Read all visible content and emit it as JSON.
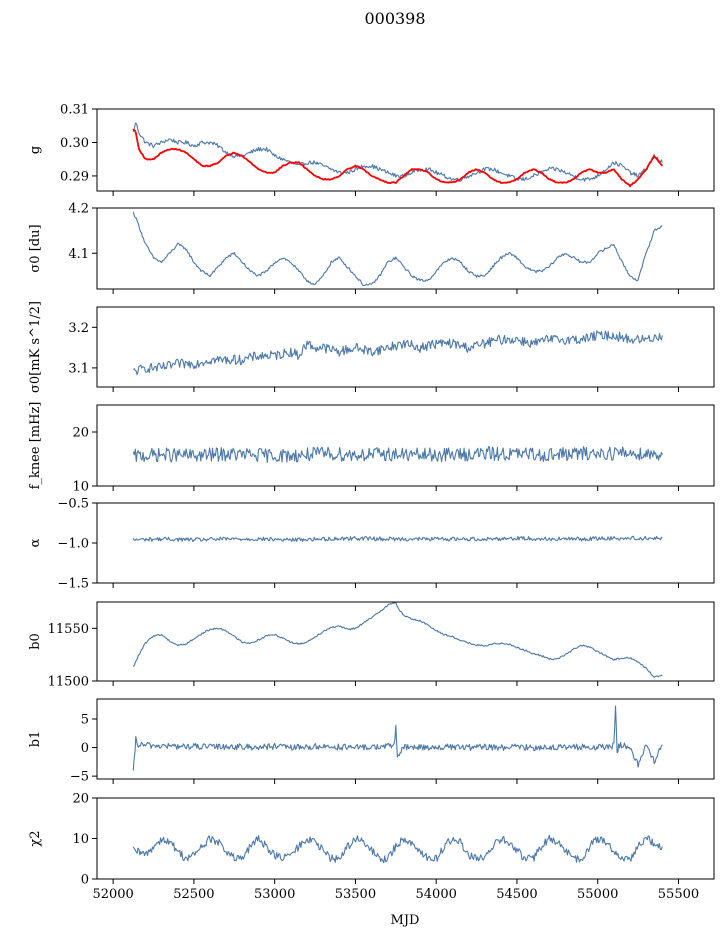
{
  "figure": {
    "title": "000398",
    "xlabel": "MJD"
  },
  "colors": {
    "series": "#4c78a8",
    "model": "#ff0000",
    "axis": "#000000"
  },
  "chart_data": [
    {
      "type": "line",
      "name": "g",
      "ylabel": "g",
      "xlim": [
        51900,
        55720
      ],
      "ylim": [
        0.2855,
        0.31
      ],
      "yticks": [
        0.29,
        0.3,
        0.31
      ],
      "yticklabels": [
        "0.29",
        "0.30",
        "0.31"
      ],
      "xticks": [
        52000,
        52500,
        53000,
        53500,
        54000,
        54500,
        55000,
        55500
      ],
      "x": [
        52125,
        52140,
        52160,
        52200,
        52250,
        52300,
        52350,
        52400,
        52450,
        52500,
        52550,
        52600,
        52650,
        52700,
        52750,
        52800,
        52850,
        52900,
        52950,
        53000,
        53050,
        53100,
        53150,
        53200,
        53250,
        53300,
        53350,
        53400,
        53450,
        53500,
        53550,
        53600,
        53650,
        53700,
        53750,
        53800,
        53850,
        53900,
        53950,
        54000,
        54050,
        54100,
        54150,
        54200,
        54250,
        54300,
        54350,
        54400,
        54450,
        54500,
        54550,
        54600,
        54650,
        54700,
        54750,
        54800,
        54850,
        54900,
        54950,
        55000,
        55050,
        55100,
        55150,
        55200,
        55250,
        55300,
        55350,
        55400
      ],
      "series": [
        {
          "name": "",
          "values": [
            0.303,
            0.306,
            0.303,
            0.3,
            0.299,
            0.3,
            0.301,
            0.3,
            0.3,
            0.299,
            0.3,
            0.3,
            0.299,
            0.297,
            0.296,
            0.296,
            0.297,
            0.298,
            0.298,
            0.296,
            0.295,
            0.294,
            0.293,
            0.294,
            0.294,
            0.293,
            0.292,
            0.291,
            0.291,
            0.292,
            0.293,
            0.293,
            0.292,
            0.291,
            0.29,
            0.29,
            0.291,
            0.292,
            0.292,
            0.291,
            0.29,
            0.289,
            0.289,
            0.29,
            0.291,
            0.292,
            0.292,
            0.291,
            0.29,
            0.289,
            0.289,
            0.29,
            0.291,
            0.292,
            0.292,
            0.291,
            0.29,
            0.289,
            0.289,
            0.29,
            0.292,
            0.294,
            0.293,
            0.291,
            0.29,
            0.292,
            0.296,
            0.294
          ]
        },
        {
          "name": "",
          "values": [
            0.304,
            0.303,
            0.298,
            0.295,
            0.295,
            0.297,
            0.298,
            0.298,
            0.297,
            0.295,
            0.293,
            0.293,
            0.294,
            0.296,
            0.297,
            0.296,
            0.294,
            0.292,
            0.291,
            0.291,
            0.293,
            0.294,
            0.294,
            0.292,
            0.29,
            0.289,
            0.289,
            0.29,
            0.292,
            0.293,
            0.292,
            0.29,
            0.289,
            0.288,
            0.288,
            0.29,
            0.292,
            0.292,
            0.291,
            0.289,
            0.288,
            0.288,
            0.289,
            0.291,
            0.292,
            0.291,
            0.289,
            0.288,
            0.288,
            0.289,
            0.291,
            0.292,
            0.291,
            0.289,
            0.288,
            0.288,
            0.289,
            0.291,
            0.292,
            0.291,
            0.291,
            0.292,
            0.289,
            0.287,
            0.289,
            0.292,
            0.296,
            0.293
          ]
        }
      ]
    },
    {
      "type": "line",
      "name": "sigma0-du",
      "ylabel": "σ0 [du]",
      "xlim": [
        51900,
        55720
      ],
      "ylim": [
        4.021,
        4.2
      ],
      "yticks": [
        4.1,
        4.2
      ],
      "yticklabels": [
        "4.1",
        "4.2"
      ],
      "x": [
        52125,
        52150,
        52200,
        52250,
        52300,
        52350,
        52400,
        52450,
        52500,
        52550,
        52600,
        52650,
        52700,
        52750,
        52800,
        52850,
        52900,
        52950,
        53000,
        53050,
        53100,
        53150,
        53200,
        53250,
        53300,
        53350,
        53400,
        53450,
        53500,
        53550,
        53600,
        53650,
        53700,
        53750,
        53800,
        53850,
        53900,
        53950,
        54000,
        54050,
        54100,
        54150,
        54200,
        54250,
        54300,
        54350,
        54400,
        54450,
        54500,
        54550,
        54600,
        54650,
        54700,
        54750,
        54800,
        54850,
        54900,
        54950,
        55000,
        55050,
        55100,
        55150,
        55200,
        55250,
        55300,
        55350,
        55400
      ],
      "series": [
        {
          "name": "",
          "values": [
            4.19,
            4.17,
            4.12,
            4.09,
            4.08,
            4.1,
            4.12,
            4.11,
            4.08,
            4.06,
            4.05,
            4.07,
            4.09,
            4.1,
            4.08,
            4.06,
            4.05,
            4.06,
            4.08,
            4.09,
            4.08,
            4.06,
            4.04,
            4.03,
            4.05,
            4.08,
            4.09,
            4.07,
            4.05,
            4.03,
            4.03,
            4.05,
            4.08,
            4.09,
            4.07,
            4.05,
            4.04,
            4.04,
            4.06,
            4.08,
            4.09,
            4.08,
            4.06,
            4.05,
            4.05,
            4.07,
            4.09,
            4.1,
            4.09,
            4.07,
            4.06,
            4.06,
            4.07,
            4.09,
            4.1,
            4.09,
            4.08,
            4.08,
            4.1,
            4.11,
            4.12,
            4.08,
            4.05,
            4.04,
            4.1,
            4.15,
            4.16
          ]
        }
      ]
    },
    {
      "type": "line",
      "name": "sigma0-mK",
      "ylabel": "σ0[mK s^1/2]",
      "xlim": [
        51900,
        55720
      ],
      "ylim": [
        3.053,
        3.25
      ],
      "yticks": [
        3.1,
        3.2
      ],
      "yticklabels": [
        "3.1",
        "3.2"
      ],
      "x": [
        52125,
        52200,
        52300,
        52400,
        52500,
        52600,
        52700,
        52800,
        52900,
        53000,
        53100,
        53150,
        53200,
        53250,
        53300,
        53400,
        53500,
        53600,
        53700,
        53800,
        53900,
        54000,
        54100,
        54200,
        54300,
        54400,
        54500,
        54600,
        54700,
        54800,
        54900,
        55000,
        55100,
        55200,
        55300,
        55400
      ],
      "series": [
        {
          "name": "",
          "values": [
            3.09,
            3.1,
            3.1,
            3.11,
            3.11,
            3.12,
            3.12,
            3.12,
            3.13,
            3.13,
            3.14,
            3.13,
            3.16,
            3.15,
            3.15,
            3.14,
            3.15,
            3.14,
            3.15,
            3.16,
            3.15,
            3.16,
            3.16,
            3.15,
            3.16,
            3.17,
            3.17,
            3.16,
            3.17,
            3.17,
            3.17,
            3.18,
            3.18,
            3.17,
            3.17,
            3.18
          ]
        }
      ]
    },
    {
      "type": "line",
      "name": "f-knee",
      "ylabel": "f_knee [mHz]",
      "xlim": [
        51900,
        55720
      ],
      "ylim": [
        10,
        25
      ],
      "yticks": [
        10,
        20
      ],
      "yticklabels": [
        "10",
        "20"
      ],
      "x": [
        52125,
        52300,
        52500,
        52700,
        52900,
        53100,
        53300,
        53500,
        53700,
        53900,
        54100,
        54300,
        54500,
        54700,
        54900,
        55100,
        55300,
        55400
      ],
      "series": [
        {
          "name": "",
          "values": [
            15.5,
            15.8,
            15.6,
            15.9,
            15.7,
            15.6,
            16.0,
            15.8,
            15.9,
            15.7,
            15.8,
            16.0,
            15.9,
            15.8,
            16.0,
            16.1,
            16.0,
            15.8
          ]
        }
      ]
    },
    {
      "type": "line",
      "name": "alpha",
      "ylabel": "α",
      "xlim": [
        51900,
        55720
      ],
      "ylim": [
        -1.5,
        -0.5
      ],
      "yticks": [
        -1.5,
        -1.0,
        -0.5
      ],
      "yticklabels": [
        "−1.5",
        "−1.0",
        "−0.5"
      ],
      "x": [
        52125,
        52300,
        52500,
        52700,
        52900,
        53100,
        53300,
        53500,
        53700,
        53900,
        54100,
        54300,
        54500,
        54700,
        54900,
        55100,
        55300,
        55400
      ],
      "series": [
        {
          "name": "",
          "values": [
            -0.96,
            -0.95,
            -0.96,
            -0.95,
            -0.95,
            -0.96,
            -0.95,
            -0.94,
            -0.95,
            -0.95,
            -0.95,
            -0.95,
            -0.94,
            -0.95,
            -0.95,
            -0.94,
            -0.94,
            -0.94
          ]
        }
      ]
    },
    {
      "type": "line",
      "name": "b0",
      "ylabel": "b0",
      "xlim": [
        51900,
        55720
      ],
      "ylim": [
        11500,
        11575
      ],
      "yticks": [
        11500,
        11550
      ],
      "yticklabels": [
        "11500",
        "11550"
      ],
      "x": [
        52125,
        52150,
        52200,
        52250,
        52300,
        52350,
        52400,
        52450,
        52500,
        52550,
        52600,
        52650,
        52700,
        52750,
        52800,
        52850,
        52900,
        52950,
        53000,
        53050,
        53100,
        53150,
        53200,
        53250,
        53300,
        53350,
        53400,
        53450,
        53500,
        53550,
        53600,
        53650,
        53700,
        53750,
        53760,
        53800,
        53850,
        53900,
        53950,
        54000,
        54050,
        54100,
        54150,
        54200,
        54250,
        54300,
        54350,
        54400,
        54450,
        54500,
        54550,
        54600,
        54650,
        54700,
        54750,
        54800,
        54850,
        54900,
        54950,
        55000,
        55050,
        55100,
        55150,
        55200,
        55250,
        55300,
        55350,
        55400
      ],
      "series": [
        {
          "name": "",
          "values": [
            11513,
            11522,
            11536,
            11543,
            11544,
            11538,
            11534,
            11535,
            11540,
            11545,
            11549,
            11550,
            11548,
            11542,
            11537,
            11536,
            11539,
            11543,
            11544,
            11541,
            11537,
            11535,
            11537,
            11542,
            11547,
            11551,
            11552,
            11549,
            11550,
            11555,
            11560,
            11566,
            11572,
            11575,
            11570,
            11562,
            11559,
            11557,
            11553,
            11548,
            11544,
            11542,
            11539,
            11536,
            11534,
            11533,
            11535,
            11536,
            11535,
            11532,
            11529,
            11526,
            11524,
            11521,
            11521,
            11525,
            11530,
            11534,
            11532,
            11528,
            11524,
            11520,
            11522,
            11522,
            11518,
            11512,
            11504,
            11505
          ]
        }
      ]
    },
    {
      "type": "line",
      "name": "b1",
      "ylabel": "b1",
      "xlim": [
        51900,
        55720
      ],
      "ylim": [
        -5.5,
        8.5
      ],
      "yticks": [
        -5,
        0,
        5
      ],
      "yticklabels": [
        "−5",
        "0",
        "5"
      ],
      "x": [
        52125,
        52140,
        52150,
        52200,
        52300,
        52400,
        52500,
        52600,
        52700,
        52800,
        52900,
        53000,
        53100,
        53200,
        53300,
        53400,
        53500,
        53600,
        53700,
        53740,
        53750,
        53760,
        53800,
        53900,
        54000,
        54100,
        54200,
        54300,
        54400,
        54500,
        54600,
        54700,
        54800,
        54900,
        55000,
        55100,
        55110,
        55120,
        55130,
        55200,
        55250,
        55300,
        55350,
        55400
      ],
      "series": [
        {
          "name": "",
          "values": [
            -4.5,
            1.5,
            0.5,
            0.4,
            0.3,
            0.2,
            0.2,
            0.1,
            0.2,
            0.1,
            0.1,
            0.2,
            0.0,
            0.1,
            0.2,
            0.1,
            0.0,
            0.1,
            0.2,
            0.5,
            3.5,
            -1.5,
            0.0,
            0.1,
            0.0,
            0.1,
            0.0,
            0.1,
            0.0,
            0.1,
            0.0,
            0.1,
            0.0,
            0.1,
            0.0,
            0.3,
            7.5,
            -1.0,
            0.5,
            0.0,
            -3.0,
            0.5,
            -2.5,
            0.5
          ]
        }
      ]
    },
    {
      "type": "line",
      "name": "chi2",
      "ylabel": "χ2",
      "xlim": [
        51900,
        55720
      ],
      "ylim": [
        0,
        20
      ],
      "yticks": [
        0,
        10,
        20
      ],
      "yticklabels": [
        "0",
        "10",
        "20"
      ],
      "xticks": [
        52000,
        52500,
        53000,
        53500,
        54000,
        54500,
        55000,
        55500
      ],
      "xticklabels": [
        "52000",
        "52500",
        "53000",
        "53500",
        "54000",
        "54500",
        "55000",
        "55500"
      ],
      "x": [
        52125,
        52200,
        52250,
        52300,
        52350,
        52400,
        52450,
        52500,
        52550,
        52600,
        52650,
        52700,
        52750,
        52800,
        52850,
        52900,
        52950,
        53000,
        53050,
        53100,
        53150,
        53200,
        53250,
        53300,
        53350,
        53400,
        53450,
        53500,
        53550,
        53600,
        53650,
        53700,
        53750,
        53800,
        53850,
        53900,
        53950,
        54000,
        54050,
        54100,
        54150,
        54200,
        54250,
        54300,
        54350,
        54400,
        54450,
        54500,
        54550,
        54600,
        54650,
        54700,
        54750,
        54800,
        54850,
        54900,
        54950,
        55000,
        55050,
        55100,
        55150,
        55200,
        55250,
        55300,
        55350,
        55400
      ],
      "series": [
        {
          "name": "",
          "values": [
            7,
            6,
            8,
            10,
            9,
            7,
            5,
            6,
            8,
            10,
            9,
            7,
            5,
            5,
            8,
            10,
            8,
            6,
            5,
            6,
            8,
            10,
            9,
            7,
            5,
            5,
            8,
            10,
            9,
            7,
            5,
            5,
            8,
            10,
            9,
            7,
            5,
            5,
            8,
            10,
            9,
            6,
            5,
            5,
            8,
            10,
            9,
            7,
            5,
            5,
            8,
            10,
            9,
            7,
            5,
            5,
            8,
            10,
            9,
            7,
            5,
            5,
            8,
            10,
            9,
            8
          ]
        }
      ]
    }
  ]
}
